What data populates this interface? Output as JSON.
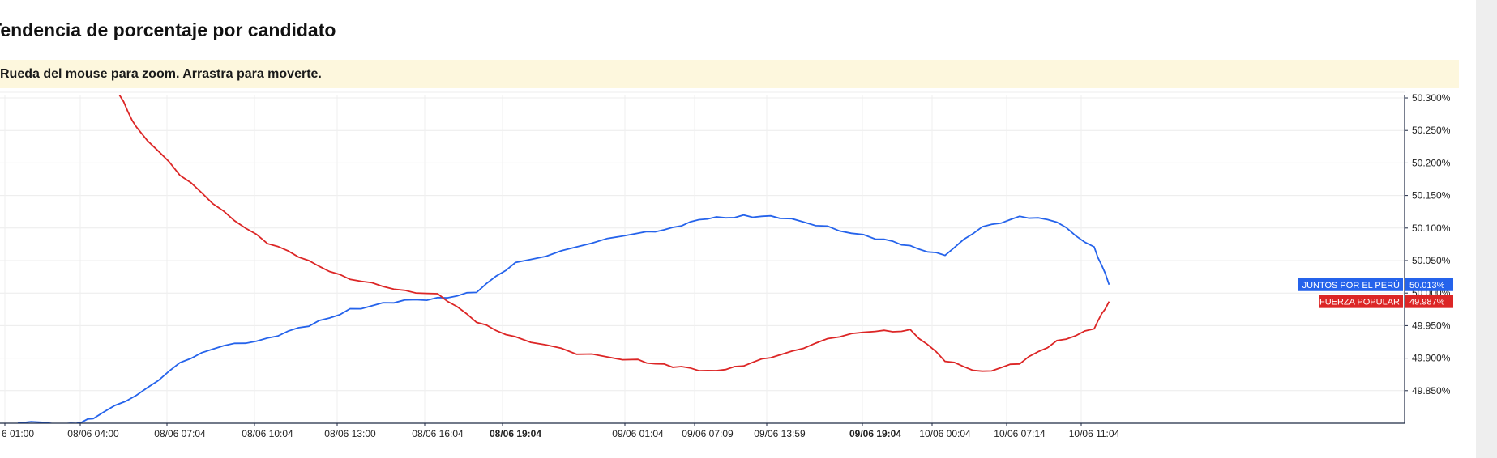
{
  "page": {
    "title": "Tendencia de porcentaje por candidato",
    "hint": "Rueda del mouse para zoom. Arrastra para moverte."
  },
  "chart_data": {
    "type": "line",
    "title": "Tendencia de porcentaje por candidato",
    "xlabel": "",
    "ylabel": "",
    "ylim": [
      49.8,
      50.305
    ],
    "y_ticks": [
      "50.300%",
      "50.250%",
      "50.200%",
      "50.150%",
      "50.100%",
      "50.050%",
      "50.000%",
      "49.950%",
      "49.900%",
      "49.850%"
    ],
    "y_tick_values": [
      50.3,
      50.25,
      50.2,
      50.15,
      50.1,
      50.05,
      50.0,
      49.95,
      49.9,
      49.85
    ],
    "x_ticks": [
      {
        "label": "6 01:00",
        "bold": false
      },
      {
        "label": "08/06 04:00",
        "bold": false
      },
      {
        "label": "08/06 07:04",
        "bold": false
      },
      {
        "label": "08/06 10:04",
        "bold": false
      },
      {
        "label": "08/06 13:00",
        "bold": false
      },
      {
        "label": "08/06 16:04",
        "bold": false
      },
      {
        "label": "08/06 19:04",
        "bold": true
      },
      {
        "label": "09/06 01:04",
        "bold": false
      },
      {
        "label": "09/06 07:09",
        "bold": false
      },
      {
        "label": "09/06 13:59",
        "bold": false
      },
      {
        "label": "09/06 19:04",
        "bold": true
      },
      {
        "label": "10/06 00:04",
        "bold": false
      },
      {
        "label": "10/06 07:14",
        "bold": false
      },
      {
        "label": "10/06 11:04",
        "bold": false
      }
    ],
    "grid": true,
    "series": [
      {
        "name": "JUNTOS POR EL PERÚ",
        "color": "#2563eb",
        "last_label": "50.013%",
        "x": [
          0,
          0.7,
          1.0,
          1.5,
          2.0,
          2.5,
          3.0,
          3.5,
          4.0,
          4.5,
          5.0,
          5.5,
          6.0,
          6.5,
          7.0,
          7.5,
          8.0,
          8.5,
          9.0,
          9.5,
          10.0,
          10.5,
          11.0,
          11.5,
          12.0,
          12.5,
          13.0,
          13.2
        ],
        "values": [
          49.8,
          49.8,
          49.807,
          49.843,
          49.893,
          49.919,
          49.931,
          49.949,
          49.976,
          49.985,
          49.993,
          50.001,
          50.047,
          50.071,
          50.092,
          50.101,
          50.114,
          50.12,
          50.115,
          50.103,
          50.083,
          50.073,
          50.058,
          50.102,
          50.118,
          50.109,
          50.071,
          50.013
        ]
      },
      {
        "name": "FUERZA POPULAR",
        "color": "#dc2626",
        "last_label": "49.987%",
        "x": [
          1.3,
          1.5,
          2.0,
          2.5,
          3.0,
          3.5,
          4.0,
          4.5,
          5.0,
          5.5,
          6.0,
          6.5,
          7.0,
          7.5,
          8.0,
          8.5,
          9.0,
          9.5,
          10.0,
          10.5,
          11.0,
          11.5,
          12.0,
          12.5,
          13.0,
          13.2
        ],
        "values": [
          50.305,
          50.255,
          50.181,
          50.126,
          50.076,
          50.05,
          50.021,
          50.006,
          49.999,
          49.955,
          49.933,
          49.906,
          49.898,
          49.886,
          49.881,
          49.888,
          49.905,
          49.93,
          49.941,
          49.944,
          49.895,
          49.88,
          49.891,
          49.927,
          49.945,
          49.987
        ]
      }
    ]
  }
}
